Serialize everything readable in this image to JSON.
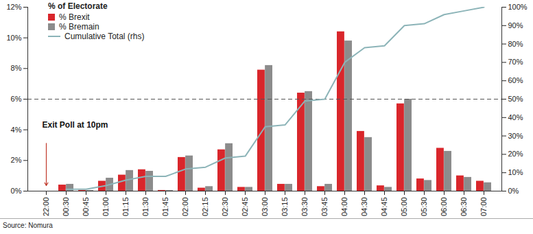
{
  "chart_data": {
    "type": "bar",
    "title": "% of Electorate",
    "categories": [
      "22:00",
      "00:30",
      "00:45",
      "01:00",
      "01:15",
      "01:30",
      "01:45",
      "02:00",
      "02:15",
      "02:30",
      "02:45",
      "03:00",
      "03:15",
      "03:30",
      "03:45",
      "04:00",
      "04:30",
      "04:45",
      "05:00",
      "05:30",
      "06:00",
      "06:30",
      "07:00"
    ],
    "series": [
      {
        "name": "% Brexit",
        "type": "bar",
        "color": "#d9262b",
        "values": [
          0,
          0.4,
          0.05,
          0.65,
          1.05,
          1.4,
          0.05,
          2.2,
          0.2,
          2.7,
          0.25,
          7.9,
          0.45,
          6.4,
          0.3,
          10.4,
          3.9,
          0.35,
          5.7,
          0.8,
          2.8,
          1.0,
          0.65
        ]
      },
      {
        "name": "% Bremain",
        "type": "bar",
        "color": "#8c8c8c",
        "values": [
          0,
          0.45,
          0.05,
          0.85,
          1.35,
          1.3,
          0.05,
          2.3,
          0.3,
          3.1,
          0.25,
          8.2,
          0.45,
          6.5,
          0.45,
          9.8,
          3.5,
          0.25,
          6.0,
          0.7,
          2.6,
          0.9,
          0.55
        ]
      },
      {
        "name": "Cumulative Total (rhs)",
        "type": "line",
        "axis": "y2",
        "color": "#8cb4b8",
        "values": [
          null,
          1,
          1,
          3,
          6,
          8,
          8,
          12,
          13,
          18,
          19,
          35,
          36,
          49,
          50,
          70,
          78,
          79,
          90,
          91,
          96,
          98,
          100
        ]
      }
    ],
    "ylim": [
      0,
      12
    ],
    "yticks": [
      {
        "value": 0,
        "label": "0%"
      },
      {
        "value": 2,
        "label": "2%"
      },
      {
        "value": 4,
        "label": "4%"
      },
      {
        "value": 6,
        "label": "6%"
      },
      {
        "value": 8,
        "label": "8%"
      },
      {
        "value": 10,
        "label": "10%"
      },
      {
        "value": 12,
        "label": "12%"
      }
    ],
    "y2lim": [
      0,
      100
    ],
    "y2ticks": [
      {
        "value": 0,
        "label": "0%"
      },
      {
        "value": 10,
        "label": "10%"
      },
      {
        "value": 20,
        "label": "20%"
      },
      {
        "value": 30,
        "label": "30%"
      },
      {
        "value": 40,
        "label": "40%"
      },
      {
        "value": 50,
        "label": "50%"
      },
      {
        "value": 60,
        "label": "60%"
      },
      {
        "value": 70,
        "label": "70%"
      },
      {
        "value": 80,
        "label": "80%"
      },
      {
        "value": 90,
        "label": "90%"
      },
      {
        "value": 100,
        "label": "100%"
      }
    ],
    "hline": 6,
    "annotations": [
      {
        "text": "Exit Poll at 10pm",
        "x": "22:00"
      }
    ],
    "source": "Source: Nomura",
    "legend": "top-left",
    "grid": false
  }
}
